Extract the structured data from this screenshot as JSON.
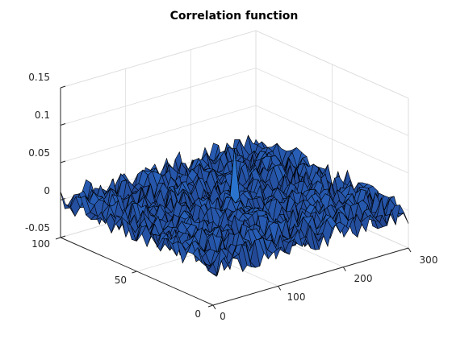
{
  "chart_data": {
    "type": "surface",
    "title": "Correlation function",
    "xlabel": "",
    "ylabel": "",
    "zlabel": "",
    "x_range": [
      0,
      300
    ],
    "y_range": [
      0,
      100
    ],
    "zlim": [
      -0.05,
      0.15
    ],
    "x_ticks": [
      "0",
      "100",
      "200",
      "300"
    ],
    "y_ticks": [
      "0",
      "50",
      "100"
    ],
    "z_ticks": [
      "-0.05",
      "0",
      "0.05",
      "0.1",
      "0.15"
    ],
    "grid": true,
    "colormap": "parula",
    "surface_description_values": {
      "noise_amplitude": 0.018,
      "baseline": 0.0,
      "peak": {
        "x": 150,
        "y": 50,
        "z": 0.082
      }
    }
  },
  "colors": {
    "edge": "#000000",
    "low": "#1e2f6e",
    "mid": "#2b6fd0",
    "high": "#21b6b0",
    "top": "#f5dc3c"
  }
}
